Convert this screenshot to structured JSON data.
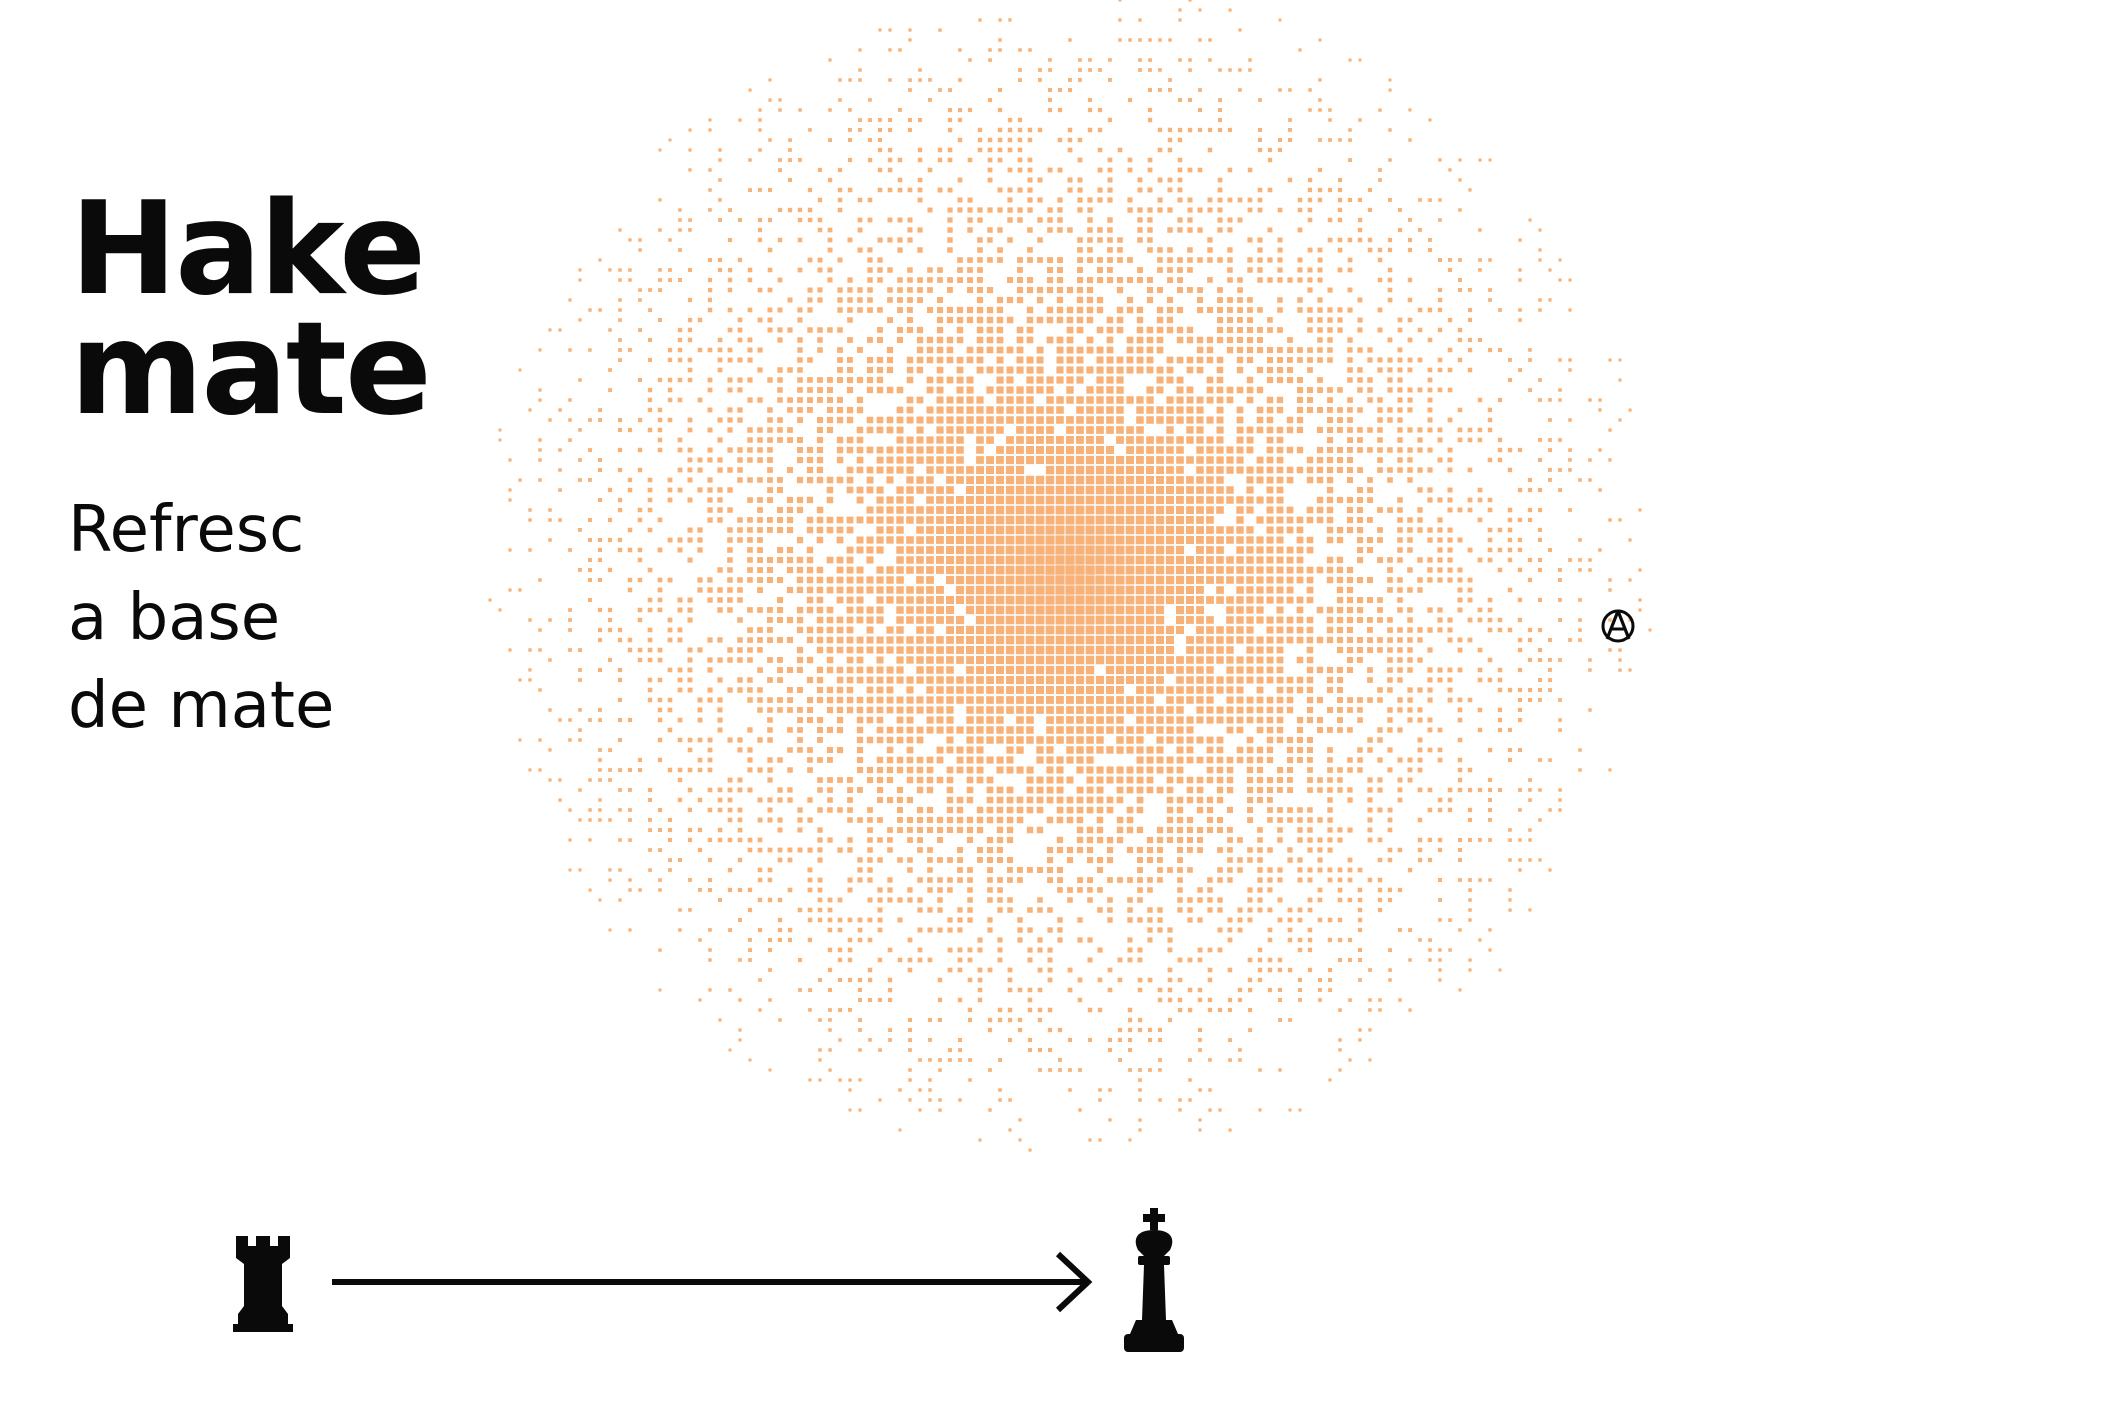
{
  "title": {
    "line1": "Hake",
    "line2": "mate"
  },
  "subtitle": {
    "line1": "Refresc",
    "line2": "a base",
    "line3": "de mate"
  },
  "colors": {
    "halftone": "#f7b27a",
    "ink": "#0a0a0a",
    "background": "#ffffff"
  },
  "icons": {
    "anarchy": "circle-a-icon",
    "rook": "chess-rook-icon",
    "arrow": "arrow-right-icon",
    "king": "chess-king-icon"
  }
}
